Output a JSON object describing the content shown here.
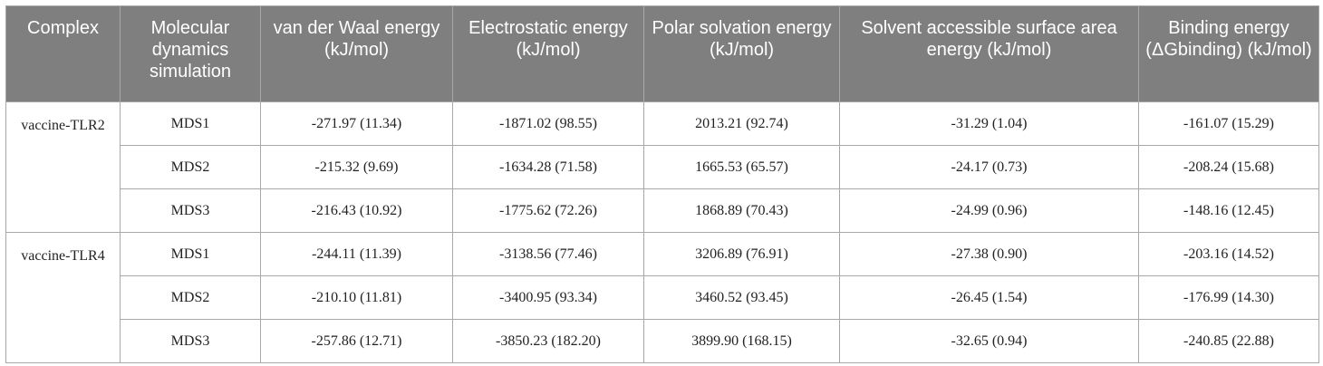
{
  "headers": [
    "Complex",
    "Molecular dynamics simulation",
    "van der Waal energy (kJ/mol)",
    "Electrostatic energy (kJ/mol)",
    "Polar solvation energy (kJ/mol)",
    "Solvent accessible surface area energy (kJ/mol)",
    "Binding energy (ΔGbinding) (kJ/mol)"
  ],
  "groups": [
    {
      "complex": "vaccine-TLR2",
      "rows": [
        [
          "MDS1",
          "-271.97 (11.34)",
          "-1871.02 (98.55)",
          "2013.21 (92.74)",
          "-31.29 (1.04)",
          "-161.07 (15.29)"
        ],
        [
          "MDS2",
          "-215.32 (9.69)",
          "-1634.28 (71.58)",
          "1665.53 (65.57)",
          "-24.17 (0.73)",
          "-208.24 (15.68)"
        ],
        [
          "MDS3",
          "-216.43 (10.92)",
          "-1775.62 (72.26)",
          "1868.89 (70.43)",
          "-24.99 (0.96)",
          "-148.16 (12.45)"
        ]
      ]
    },
    {
      "complex": "vaccine-TLR4",
      "rows": [
        [
          "MDS1",
          "-244.11 (11.39)",
          "-3138.56 (77.46)",
          "3206.89 (76.91)",
          "-27.38 (0.90)",
          "-203.16 (14.52)"
        ],
        [
          "MDS2",
          "-210.10 (11.81)",
          "-3400.95 (93.34)",
          "3460.52 (93.45)",
          "-26.45 (1.54)",
          "-176.99 (14.30)"
        ],
        [
          "MDS3",
          "-257.86 (12.71)",
          "-3850.23 (182.20)",
          "3899.90 (168.15)",
          "-32.65 (0.94)",
          "-240.85 (22.88)"
        ]
      ]
    }
  ]
}
